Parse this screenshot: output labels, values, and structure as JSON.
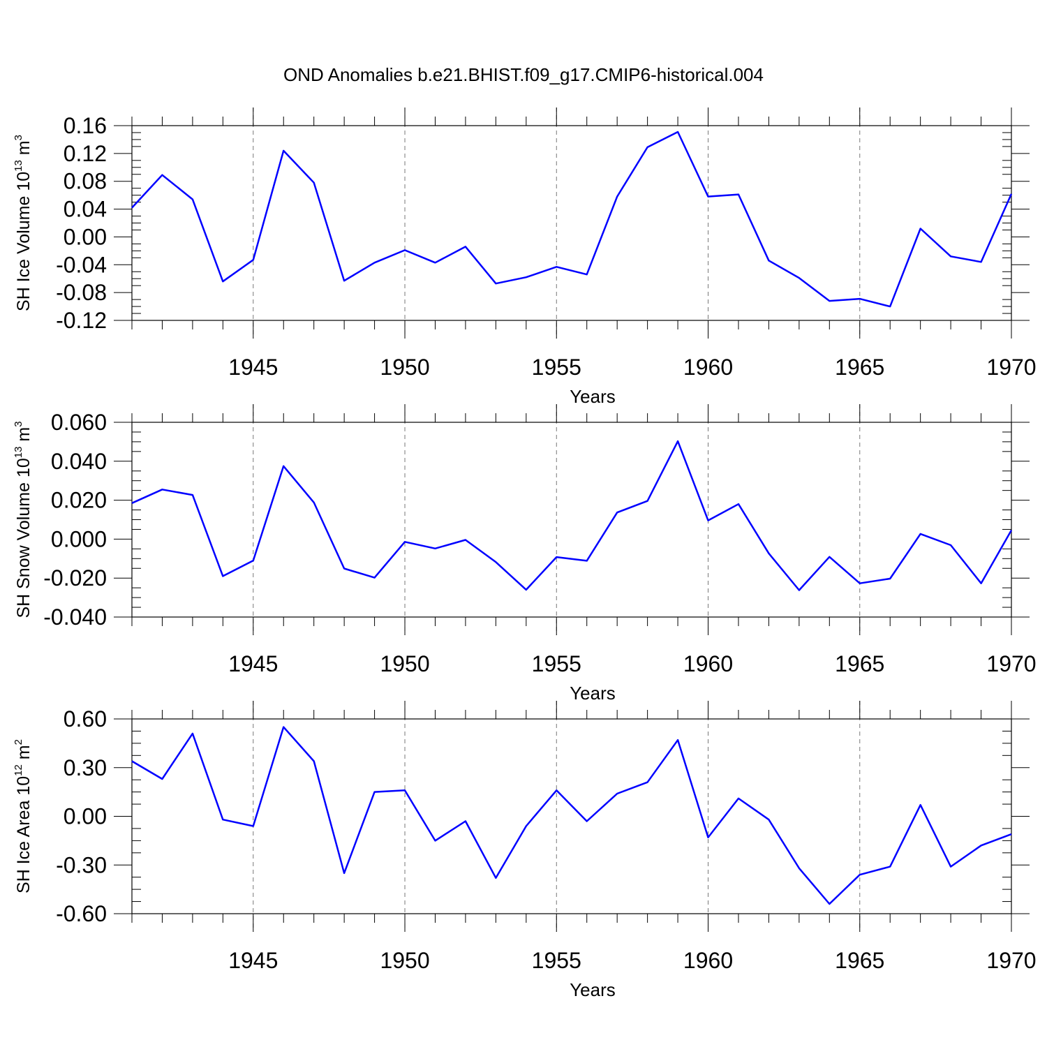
{
  "title": "OND Anomalies b.e21.BHIST.f09_g17.CMIP6-historical.004",
  "colors": {
    "series": "#0000ff",
    "grid": "#777777",
    "axis": "#000000"
  },
  "chart_data": [
    {
      "type": "line",
      "xlabel": "Years",
      "ylabel": {
        "prefix": "SH Ice Volume 10",
        "exp": "13",
        "unit": " m",
        "unit_exp": "3"
      },
      "xlim": [
        1941,
        1970
      ],
      "ylim": [
        -0.12,
        0.16
      ],
      "x_ticks": [
        "1945",
        "1950",
        "1955",
        "1960",
        "1965",
        "1970"
      ],
      "x_tick_values": [
        1945,
        1950,
        1955,
        1960,
        1965,
        1970
      ],
      "y_ticks": [
        "-0.12",
        "-0.08",
        "-0.04",
        "0.00",
        "0.04",
        "0.08",
        "0.12",
        "0.16"
      ],
      "y_tick_values": [
        -0.12,
        -0.08,
        -0.04,
        0.0,
        0.04,
        0.08,
        0.12,
        0.16
      ],
      "grid": "vertical dashed at major x ticks",
      "x": [
        1941,
        1942,
        1943,
        1944,
        1945,
        1946,
        1947,
        1948,
        1949,
        1950,
        1951,
        1952,
        1953,
        1954,
        1955,
        1956,
        1957,
        1958,
        1959,
        1960,
        1961,
        1962,
        1963,
        1964,
        1965,
        1966,
        1967,
        1968,
        1969,
        1970
      ],
      "values": [
        0.042,
        0.089,
        0.054,
        -0.064,
        -0.033,
        0.124,
        0.078,
        -0.063,
        -0.037,
        -0.019,
        -0.037,
        -0.014,
        -0.067,
        -0.058,
        -0.043,
        -0.054,
        0.058,
        0.129,
        0.151,
        0.058,
        0.061,
        -0.034,
        -0.059,
        -0.092,
        -0.089,
        -0.1,
        0.012,
        -0.028,
        -0.036,
        0.062
      ]
    },
    {
      "type": "line",
      "xlabel": "Years",
      "ylabel": {
        "prefix": "SH Snow Volume 10",
        "exp": "13",
        "unit": " m",
        "unit_exp": "3"
      },
      "xlim": [
        1941,
        1970
      ],
      "ylim": [
        -0.04,
        0.06
      ],
      "x_ticks": [
        "1945",
        "1950",
        "1955",
        "1960",
        "1965",
        "1970"
      ],
      "x_tick_values": [
        1945,
        1950,
        1955,
        1960,
        1965,
        1970
      ],
      "y_ticks": [
        "-0.040",
        "-0.020",
        "0.000",
        "0.020",
        "0.040",
        "0.060"
      ],
      "y_tick_values": [
        -0.04,
        -0.02,
        0.0,
        0.02,
        0.04,
        0.06
      ],
      "grid": "vertical dashed at major x ticks",
      "x": [
        1941,
        1942,
        1943,
        1944,
        1945,
        1946,
        1947,
        1948,
        1949,
        1950,
        1951,
        1952,
        1953,
        1954,
        1955,
        1956,
        1957,
        1958,
        1959,
        1960,
        1961,
        1962,
        1963,
        1964,
        1965,
        1966,
        1967,
        1968,
        1969,
        1970
      ],
      "values": [
        0.0185,
        0.0255,
        0.0227,
        -0.019,
        -0.011,
        0.0375,
        0.0188,
        -0.0151,
        -0.0198,
        -0.0014,
        -0.0048,
        -0.0004,
        -0.0118,
        -0.026,
        -0.0092,
        -0.0111,
        0.0137,
        0.0196,
        0.0503,
        0.0096,
        0.018,
        -0.0073,
        -0.0262,
        -0.0091,
        -0.0227,
        -0.0203,
        0.0027,
        -0.0031,
        -0.0227,
        0.0046
      ]
    },
    {
      "type": "line",
      "xlabel": "Years",
      "ylabel": {
        "prefix": "SH Ice Area 10",
        "exp": "12",
        "unit": " m",
        "unit_exp": "2"
      },
      "xlim": [
        1941,
        1970
      ],
      "ylim": [
        -0.6,
        0.6
      ],
      "x_ticks": [
        "1945",
        "1950",
        "1955",
        "1960",
        "1965",
        "1970"
      ],
      "x_tick_values": [
        1945,
        1950,
        1955,
        1960,
        1965,
        1970
      ],
      "y_ticks": [
        "-0.60",
        "-0.30",
        "0.00",
        "0.30",
        "0.60"
      ],
      "y_tick_values": [
        -0.6,
        -0.3,
        0.0,
        0.3,
        0.6
      ],
      "grid": "vertical dashed at major x ticks",
      "x": [
        1941,
        1942,
        1943,
        1944,
        1945,
        1946,
        1947,
        1948,
        1949,
        1950,
        1951,
        1952,
        1953,
        1954,
        1955,
        1956,
        1957,
        1958,
        1959,
        1960,
        1961,
        1962,
        1963,
        1964,
        1965,
        1966,
        1967,
        1968,
        1969,
        1970
      ],
      "values": [
        0.34,
        0.23,
        0.51,
        -0.02,
        -0.06,
        0.55,
        0.34,
        -0.35,
        0.15,
        0.16,
        -0.15,
        -0.03,
        -0.38,
        -0.06,
        0.16,
        -0.03,
        0.14,
        0.21,
        0.47,
        -0.13,
        0.11,
        -0.02,
        -0.32,
        -0.54,
        -0.36,
        -0.31,
        0.07,
        -0.31,
        -0.18,
        -0.11
      ]
    }
  ]
}
